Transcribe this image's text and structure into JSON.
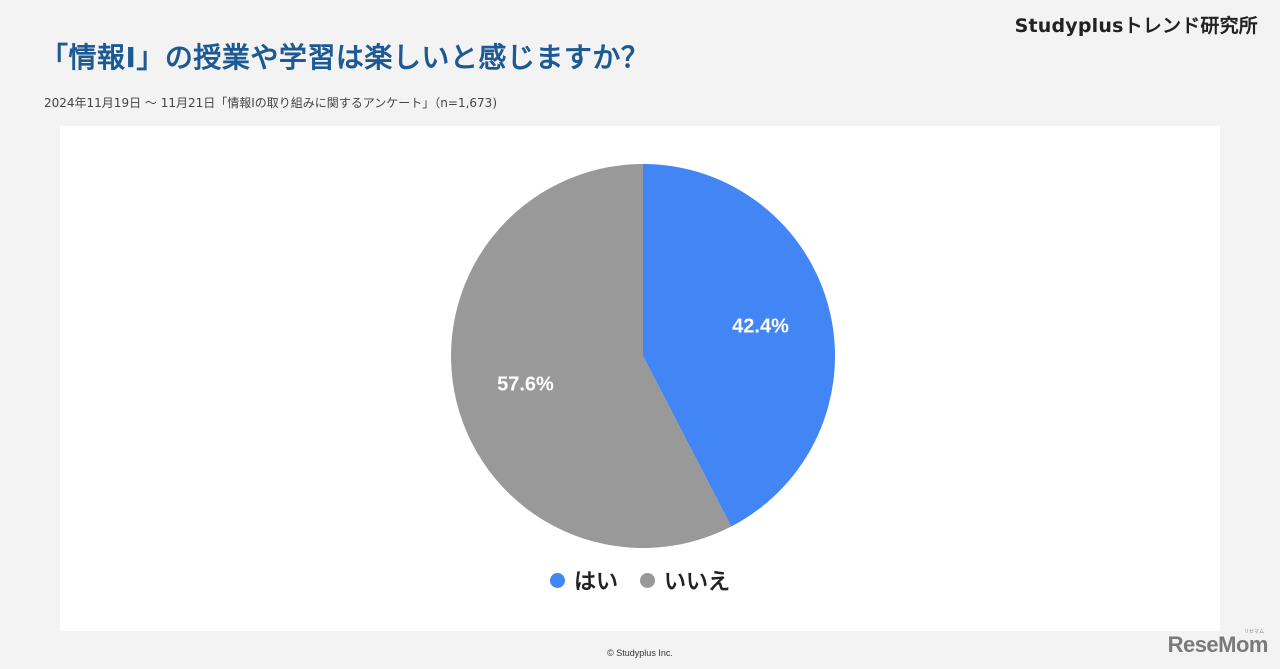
{
  "header": {
    "brand": "Studyplusトレンド研究所",
    "title": "「情報Ⅰ」の授業や学習は楽しいと感じますか？",
    "subtitle": "2024年11月19日 〜 11月21日「情報Ⅰの取り組みに関するアンケート」（n=1,673)"
  },
  "chart_data": {
    "type": "pie",
    "title": "「情報Ⅰ」の授業や学習は楽しいと感じますか？",
    "subtitle": "2024年11月19日 〜 11月21日「情報Ⅰの取り組みに関するアンケート」（n=1,673)",
    "categories": [
      "はい",
      "いいえ"
    ],
    "values": [
      42.4,
      57.6
    ],
    "labels": [
      "42.4%",
      "57.6%"
    ],
    "colors": [
      "#4285f4",
      "#999999"
    ],
    "start_angle": "12 o'clock, clockwise",
    "legend_position": "bottom",
    "n": 1673
  },
  "legend": {
    "items": [
      {
        "label": "はい",
        "color": "#4285f4"
      },
      {
        "label": "いいえ",
        "color": "#999999"
      }
    ]
  },
  "footer": {
    "copyright": "© Studyplus Inc.",
    "watermark": "ReseMom",
    "watermark_ruby": "リセマム"
  }
}
